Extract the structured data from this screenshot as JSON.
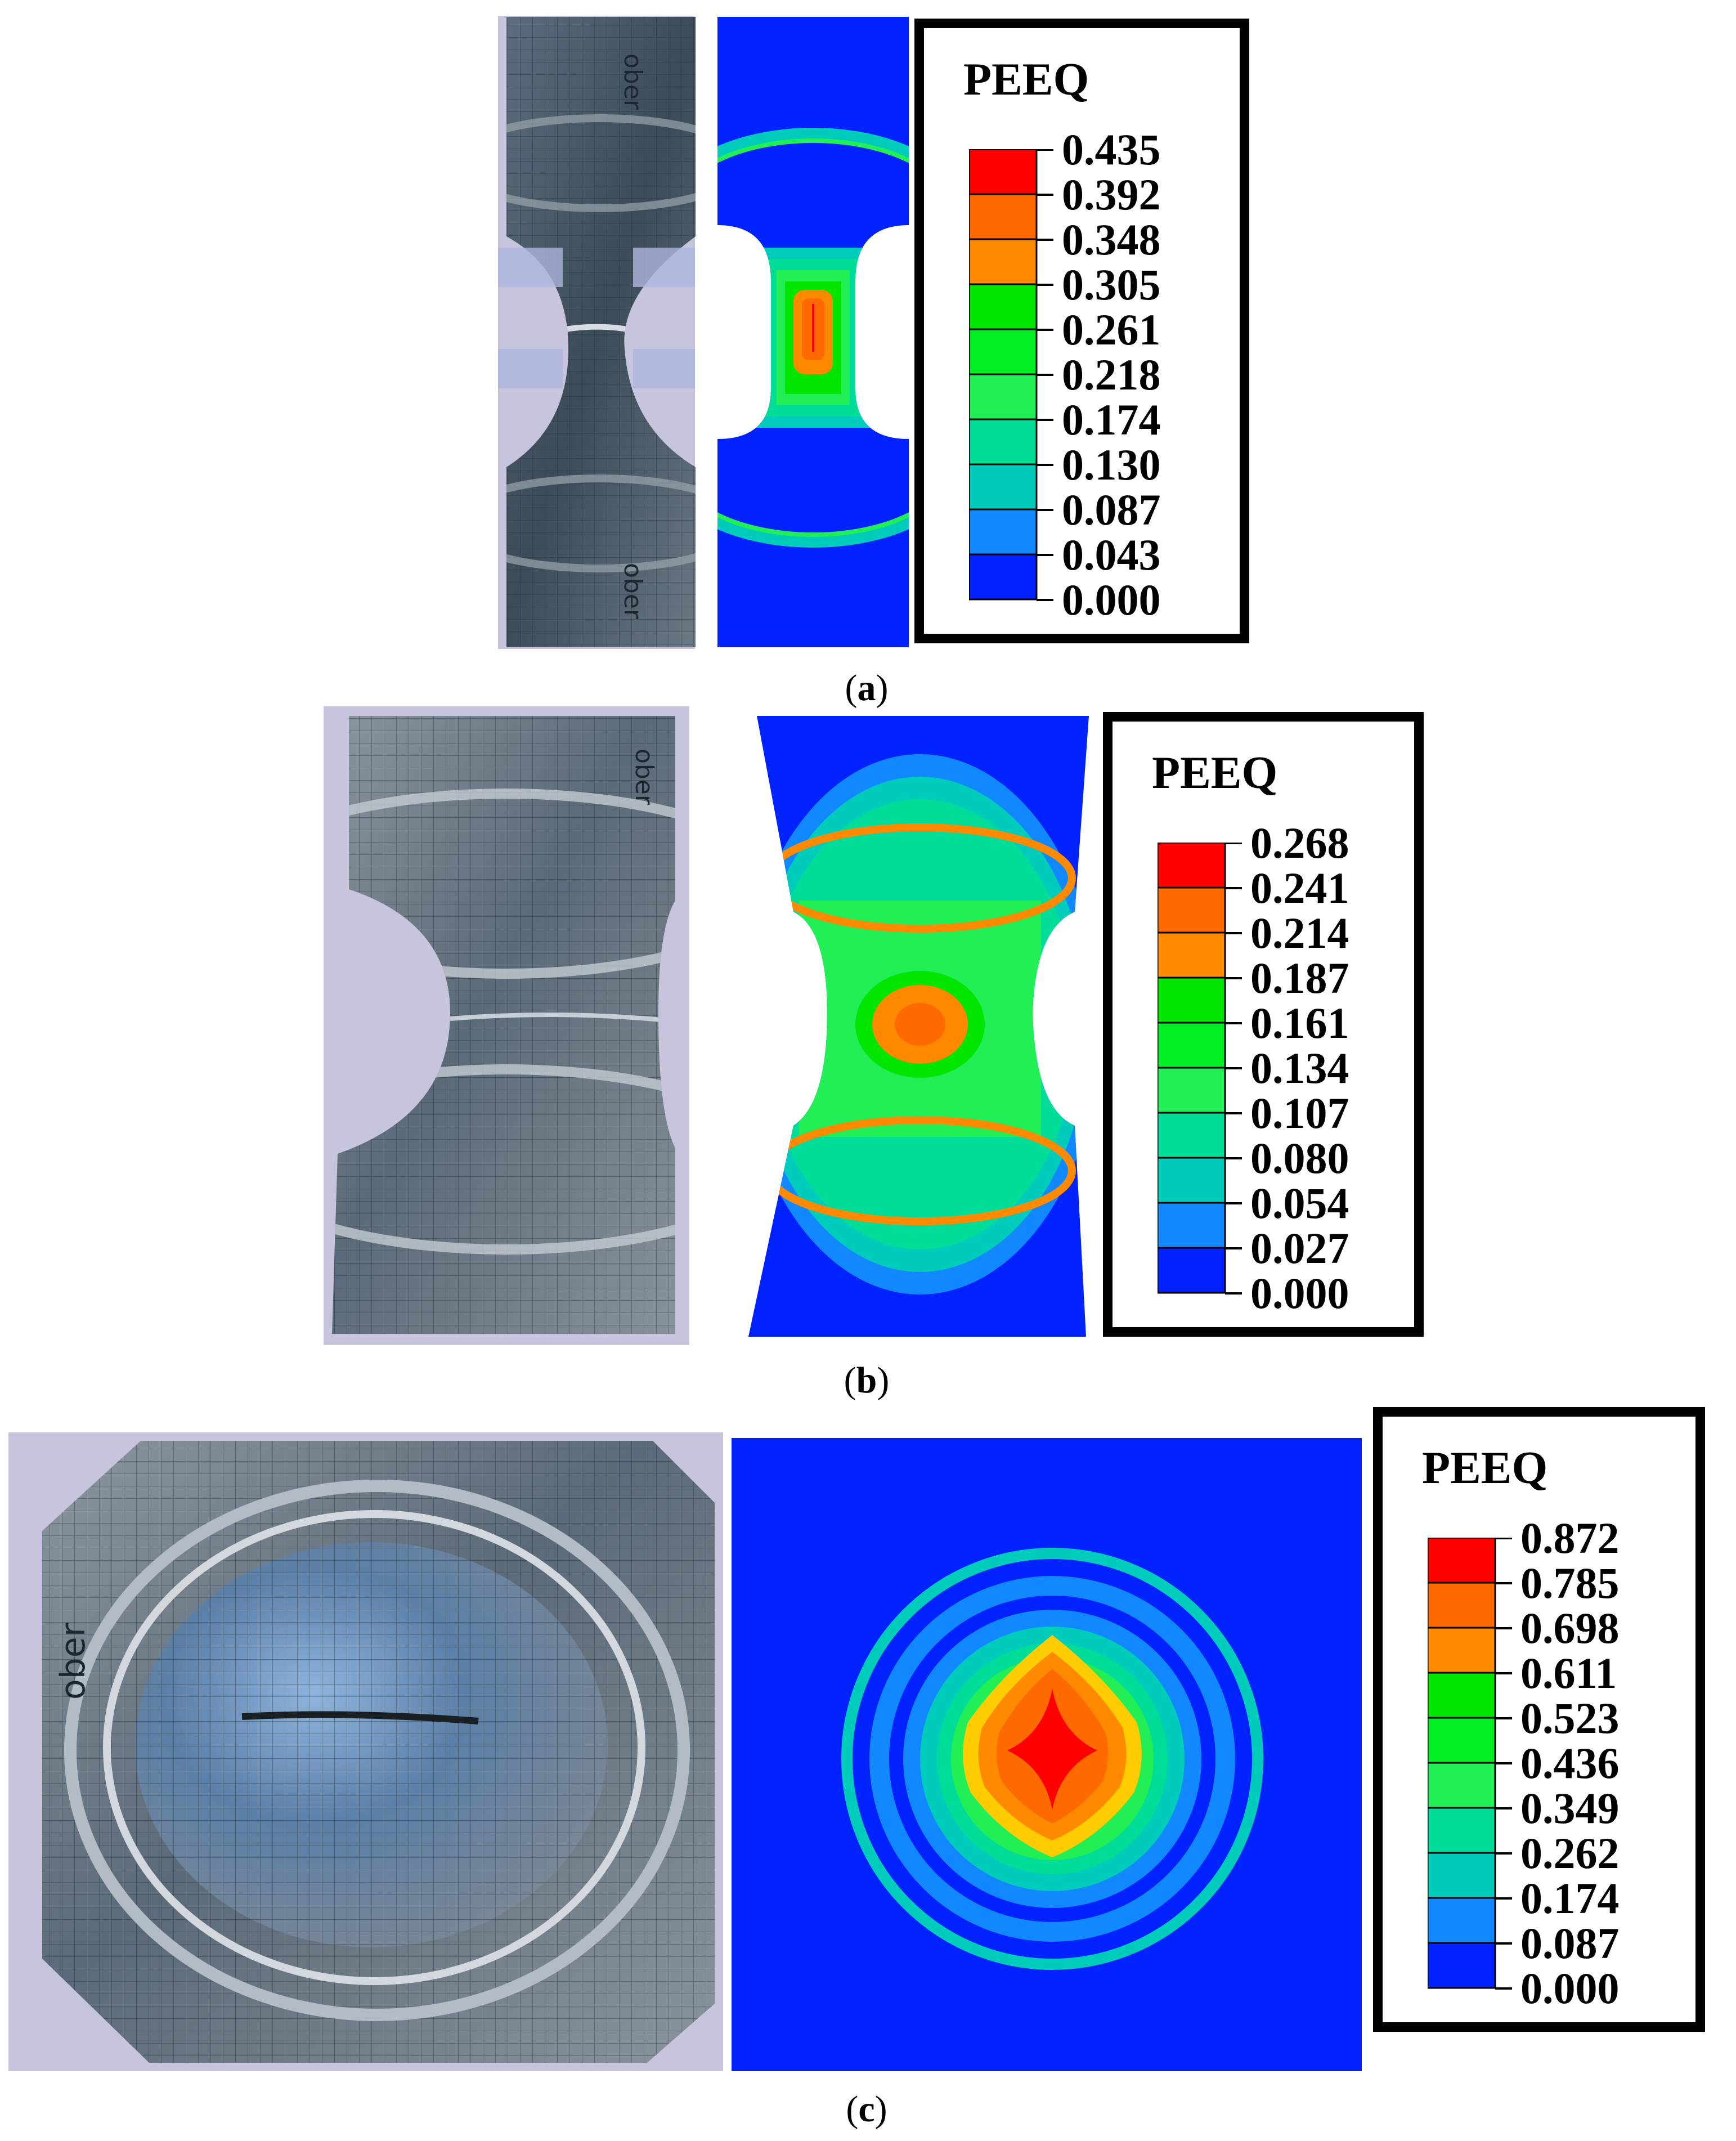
{
  "panels": [
    {
      "id": "a",
      "caption_letter": "a",
      "legend": {
        "title": "PEEQ",
        "ticks": [
          "0.435",
          "0.392",
          "0.348",
          "0.305",
          "0.261",
          "0.218",
          "0.174",
          "0.130",
          "0.087",
          "0.043",
          "0.000"
        ],
        "colors": [
          "#ff0000",
          "#ff6a00",
          "#ff8a00",
          "#00e600",
          "#00ee22",
          "#22ee55",
          "#00dd99",
          "#00ccbb",
          "#1188ff",
          "#0022ff"
        ]
      }
    },
    {
      "id": "b",
      "caption_letter": "b",
      "legend": {
        "title": "PEEQ",
        "ticks": [
          "0.268",
          "0.241",
          "0.214",
          "0.187",
          "0.161",
          "0.134",
          "0.107",
          "0.080",
          "0.054",
          "0.027",
          "0.000"
        ],
        "colors": [
          "#ff0000",
          "#ff6a00",
          "#ff8a00",
          "#00e600",
          "#00ee22",
          "#22ee55",
          "#00dd99",
          "#00ccbb",
          "#1188ff",
          "#0022ff"
        ]
      }
    },
    {
      "id": "c",
      "caption_letter": "c",
      "legend": {
        "title": "PEEQ",
        "ticks": [
          "0.872",
          "0.785",
          "0.698",
          "0.611",
          "0.523",
          "0.436",
          "0.349",
          "0.262",
          "0.174",
          "0.087",
          "0.000"
        ],
        "colors": [
          "#ff0000",
          "#ff6a00",
          "#ff8a00",
          "#00e600",
          "#00ee22",
          "#22ee55",
          "#00dd99",
          "#00ccbb",
          "#1188ff",
          "#0022ff"
        ]
      }
    }
  ],
  "photo_text": "ober"
}
